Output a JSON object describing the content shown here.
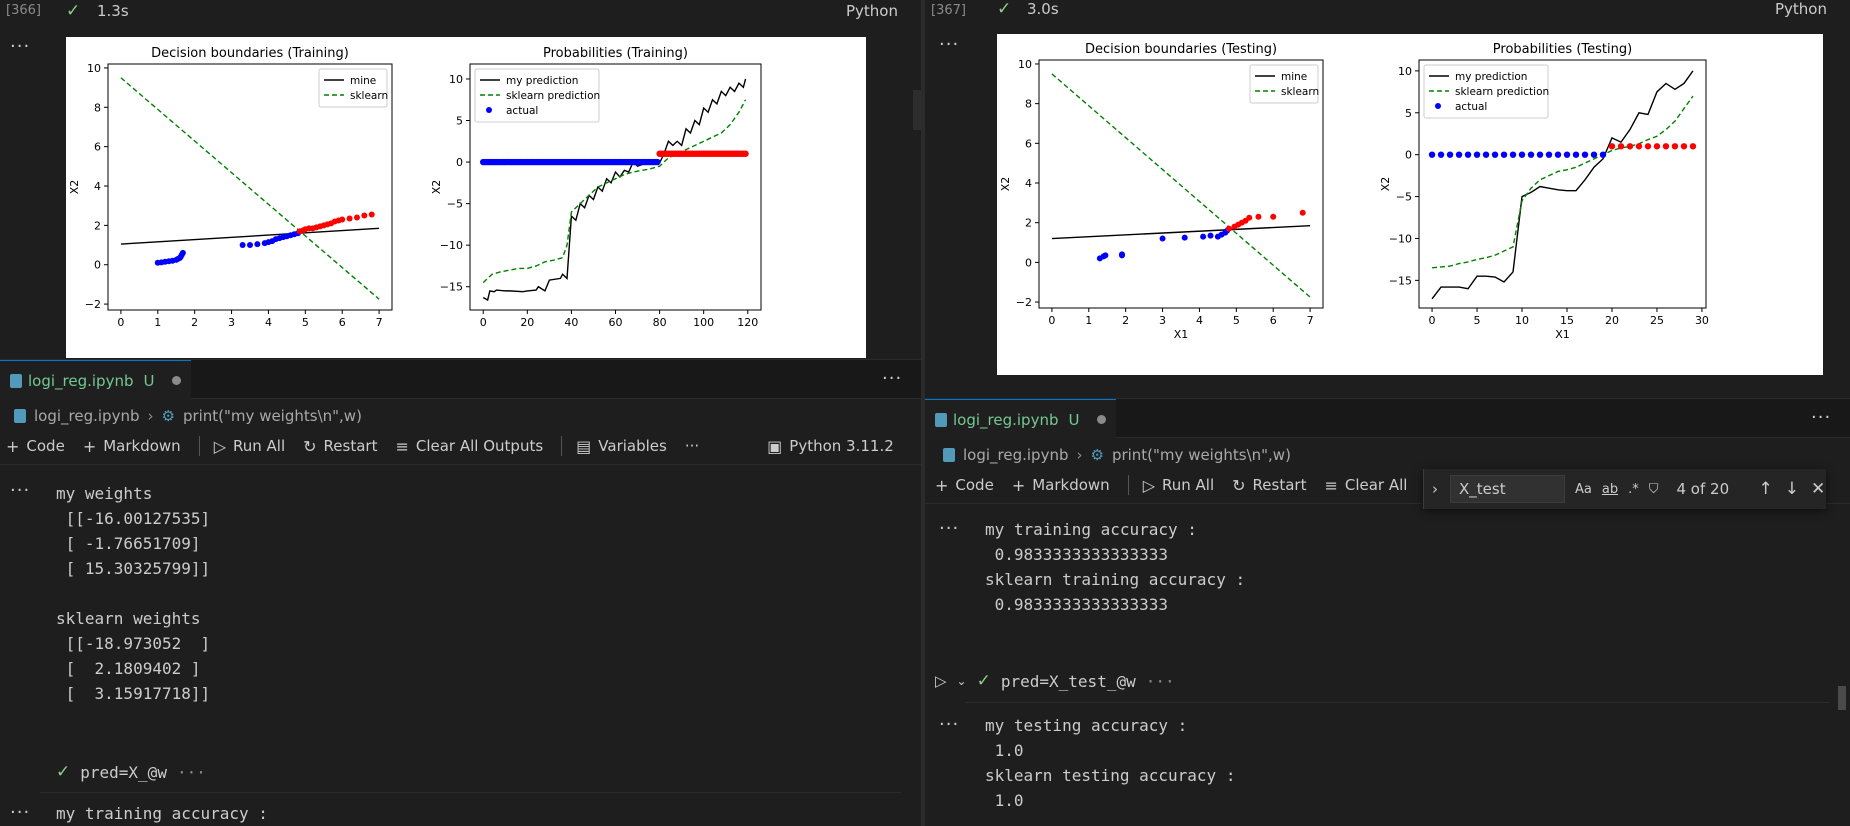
{
  "left": {
    "cell366": {
      "exec_count": "[366]",
      "duration": "1.3s",
      "language": "Python"
    },
    "tab": {
      "filename": "logi_reg.ipynb",
      "status": "U"
    },
    "breadcrumb": {
      "file": "logi_reg.ipynb",
      "symbol": "print(\"my weights\\n\",w)"
    },
    "toolbar": {
      "code": "Code",
      "markdown": "Markdown",
      "run_all": "Run All",
      "restart": "Restart",
      "clear_outputs": "Clear All Outputs",
      "variables": "Variables",
      "kernel": "Python 3.11.2"
    },
    "output_weights": "my weights\n [[-16.00127535]\n [ -1.76651709]\n [ 15.30325799]]\n\nsklearn weights\n [[-18.973052  ]\n [  2.1809402 ]\n [  3.15917718]]",
    "collapsed_cell": {
      "code": "pred=X_@w",
      "more": "···"
    },
    "output_train_partial": "my training accuracy :"
  },
  "right": {
    "cell367": {
      "exec_count": "[367]",
      "duration": "3.0s",
      "language": "Python"
    },
    "tab": {
      "filename": "logi_reg.ipynb",
      "status": "U"
    },
    "breadcrumb": {
      "file": "logi_reg.ipynb",
      "symbol": "print(\"my weights\\n\",w)"
    },
    "toolbar": {
      "code": "Code",
      "markdown": "Markdown",
      "run_all": "Run All",
      "restart": "Restart",
      "clear_outputs": "Clear All"
    },
    "find": {
      "query": "X_test",
      "count": "4 of 20",
      "opt_case": "Aa",
      "opt_word": "ab",
      "opt_regex": ".*"
    },
    "output_train": "my training accuracy :\n 0.9833333333333333\nsklearn training accuracy :\n 0.9833333333333333",
    "collapsed_cell": {
      "code": "pred=X_test_@w",
      "more": "···"
    },
    "output_test": "my testing accuracy :\n 1.0\nsklearn testing accuracy :\n 1.0"
  },
  "icons": {
    "check": "check-icon",
    "more": "more-icon",
    "plus": "plus-icon",
    "play": "play-icon",
    "restart": "restart-icon",
    "clear": "clear-icon",
    "variables": "variables-icon",
    "kernel": "kernel-icon",
    "notebook": "notebook-icon",
    "symbol": "symbol-icon"
  },
  "chart_data": [
    {
      "type": "scatter",
      "title": "Decision boundaries (Training)",
      "xlabel": "",
      "ylabel": "X2",
      "xlim": [
        -0.35,
        7.35
      ],
      "ylim": [
        -2.3,
        10.2
      ],
      "xticks": [
        0,
        1,
        2,
        3,
        4,
        5,
        6,
        7
      ],
      "yticks": [
        -2,
        0,
        2,
        4,
        6,
        8,
        10
      ],
      "legend": {
        "position": "top-right",
        "entries": [
          "mine",
          "sklearn"
        ]
      },
      "lines": [
        {
          "name": "mine",
          "style": "solid",
          "color": "#000000",
          "x": [
            0,
            7
          ],
          "y": [
            1.05,
            1.85
          ]
        },
        {
          "name": "sklearn",
          "style": "dashed",
          "color": "#008000",
          "x": [
            0,
            7
          ],
          "y": [
            9.5,
            -1.75
          ]
        }
      ],
      "scatter": [
        {
          "color": "#0000ff",
          "x": [
            1.0,
            1.1,
            1.2,
            1.3,
            1.4,
            1.5,
            1.55,
            1.6,
            1.62,
            1.65,
            1.68,
            3.3,
            3.5,
            3.7,
            3.9,
            4.0,
            4.1,
            4.2,
            4.3,
            4.4,
            4.5,
            4.6,
            4.7,
            4.8
          ],
          "y": [
            0.1,
            0.12,
            0.15,
            0.18,
            0.2,
            0.25,
            0.3,
            0.35,
            0.4,
            0.5,
            0.6,
            1.0,
            1.0,
            1.05,
            1.1,
            1.15,
            1.2,
            1.3,
            1.35,
            1.4,
            1.45,
            1.5,
            1.55,
            1.6
          ]
        },
        {
          "color": "#ff0000",
          "x": [
            4.85,
            4.95,
            5.0,
            5.1,
            5.2,
            5.3,
            5.4,
            5.5,
            5.6,
            5.7,
            5.8,
            5.9,
            6.0,
            6.2,
            6.4,
            6.6,
            6.8
          ],
          "y": [
            1.7,
            1.75,
            1.8,
            1.85,
            1.85,
            1.9,
            1.95,
            2.0,
            2.05,
            2.1,
            2.2,
            2.25,
            2.3,
            2.35,
            2.4,
            2.5,
            2.55
          ]
        }
      ]
    },
    {
      "type": "line",
      "title": "Probabilities (Training)",
      "xlabel": "",
      "ylabel": "X2",
      "xlim": [
        -6,
        126
      ],
      "ylim": [
        -17.8,
        11.8
      ],
      "xticks": [
        0,
        20,
        40,
        60,
        80,
        100,
        120
      ],
      "yticks": [
        -15,
        -10,
        -5,
        0,
        5,
        10
      ],
      "legend": {
        "position": "top-left",
        "entries": [
          "my prediction",
          "sklearn prediction",
          "actual"
        ]
      },
      "series": [
        {
          "name": "my prediction",
          "style": "solid",
          "color": "#000000",
          "x": [
            0,
            2,
            3,
            5,
            6,
            10,
            12,
            18,
            20,
            24,
            25,
            28,
            30,
            35,
            36,
            38,
            40,
            42,
            44,
            46,
            48,
            50,
            52,
            54,
            56,
            58,
            60,
            62,
            64,
            66,
            68,
            70,
            72,
            74,
            76,
            78,
            80,
            82,
            84,
            86,
            88,
            90,
            92,
            94,
            96,
            98,
            100,
            102,
            104,
            106,
            108,
            110,
            112,
            114,
            116,
            118,
            119
          ],
          "y": [
            -16.3,
            -16.6,
            -15.5,
            -15.6,
            -15.4,
            -15.5,
            -15.5,
            -15.6,
            -15.5,
            -15.4,
            -15.0,
            -15.5,
            -14.2,
            -14.0,
            -13.5,
            -14.0,
            -6.5,
            -7.0,
            -5.0,
            -5.5,
            -4.0,
            -4.5,
            -3.0,
            -3.5,
            -2.0,
            -2.5,
            -1.2,
            -1.8,
            -1.0,
            -1.2,
            0.0,
            -0.5,
            -0.3,
            -0.2,
            0.0,
            -0.2,
            -0.1,
            1.0,
            2.5,
            2.0,
            2.5,
            2.0,
            4.0,
            3.5,
            5.0,
            4.5,
            6.5,
            6.0,
            7.5,
            7.0,
            8.5,
            8.0,
            9.0,
            8.5,
            9.5,
            9.0,
            10.0
          ]
        },
        {
          "name": "sklearn prediction",
          "style": "dashed",
          "color": "#008000",
          "x": [
            0,
            4,
            8,
            12,
            16,
            20,
            24,
            28,
            32,
            36,
            38,
            40,
            44,
            48,
            52,
            56,
            60,
            64,
            68,
            72,
            76,
            80,
            84,
            88,
            92,
            96,
            100,
            104,
            108,
            112,
            116,
            119
          ],
          "y": [
            -14.5,
            -13.5,
            -13.2,
            -13.0,
            -12.8,
            -12.8,
            -12.5,
            -12.0,
            -11.8,
            -11.5,
            -10.0,
            -6.0,
            -5.0,
            -4.0,
            -3.0,
            -2.5,
            -2.0,
            -1.5,
            -1.2,
            -1.0,
            -0.8,
            -0.5,
            0.5,
            1.0,
            1.5,
            2.0,
            2.5,
            3.0,
            3.5,
            4.5,
            6.0,
            7.5
          ]
        },
        {
          "name": "actual",
          "style": "dots",
          "color_neg": "#0000ff",
          "color_pos": "#ff0000",
          "x_neg_range": [
            0,
            79
          ],
          "x_pos_range": [
            80,
            119
          ],
          "y_neg": 0,
          "y_pos": 1
        }
      ]
    },
    {
      "type": "scatter",
      "title": "Decision boundaries (Testing)",
      "xlabel": "X1",
      "ylabel": "X2",
      "xlim": [
        -0.35,
        7.35
      ],
      "ylim": [
        -2.3,
        10.2
      ],
      "xticks": [
        0,
        1,
        2,
        3,
        4,
        5,
        6,
        7
      ],
      "yticks": [
        -2,
        0,
        2,
        4,
        6,
        8,
        10
      ],
      "legend": {
        "position": "top-right",
        "entries": [
          "mine",
          "sklearn"
        ]
      },
      "lines": [
        {
          "name": "mine",
          "style": "solid",
          "color": "#000000",
          "x": [
            0,
            7
          ],
          "y": [
            1.2,
            1.85
          ]
        },
        {
          "name": "sklearn",
          "style": "dashed",
          "color": "#008000",
          "x": [
            0,
            7
          ],
          "y": [
            9.5,
            -1.75
          ]
        }
      ],
      "scatter": [
        {
          "color": "#0000ff",
          "x": [
            1.3,
            1.4,
            1.45,
            1.9,
            1.9,
            3.0,
            3.6,
            4.1,
            4.3,
            4.5,
            4.6,
            4.7,
            4.75
          ],
          "y": [
            0.2,
            0.3,
            0.35,
            0.35,
            0.4,
            1.2,
            1.25,
            1.3,
            1.35,
            1.3,
            1.4,
            1.5,
            1.6
          ]
        },
        {
          "color": "#ff0000",
          "x": [
            4.8,
            4.95,
            5.05,
            5.15,
            5.25,
            5.35,
            5.6,
            6.0,
            6.8
          ],
          "y": [
            1.7,
            1.8,
            1.9,
            2.0,
            2.1,
            2.25,
            2.3,
            2.3,
            2.5
          ]
        }
      ]
    },
    {
      "type": "line",
      "title": "Probabilities (Testing)",
      "xlabel": "X1",
      "ylabel": "X2",
      "xlim": [
        -1.45,
        30.45
      ],
      "ylim": [
        -18.3,
        11.3
      ],
      "xticks": [
        0,
        5,
        10,
        15,
        20,
        25,
        30
      ],
      "yticks": [
        -15,
        -10,
        -5,
        0,
        5,
        10
      ],
      "legend": {
        "position": "top-left",
        "entries": [
          "my prediction",
          "sklearn prediction",
          "actual"
        ]
      },
      "series": [
        {
          "name": "my prediction",
          "style": "solid",
          "color": "#000000",
          "x": [
            0,
            1,
            2,
            3,
            4,
            5,
            6,
            7,
            8,
            9,
            10,
            11,
            12,
            13,
            14,
            15,
            16,
            17,
            18,
            19,
            20,
            21,
            22,
            23,
            24,
            25,
            26,
            27,
            28,
            29
          ],
          "y": [
            -17.2,
            -15.8,
            -15.8,
            -15.8,
            -16.0,
            -14.5,
            -14.5,
            -14.6,
            -15.2,
            -14.0,
            -5.0,
            -4.5,
            -3.8,
            -4.0,
            -4.2,
            -4.3,
            -4.3,
            -3.0,
            -1.5,
            -0.5,
            2.0,
            1.5,
            3.0,
            5.0,
            4.8,
            7.5,
            8.5,
            7.8,
            8.5,
            10.0
          ]
        },
        {
          "name": "sklearn prediction",
          "style": "dashed",
          "color": "#008000",
          "x": [
            0,
            1,
            2,
            3,
            4,
            5,
            6,
            7,
            8,
            9,
            10,
            11,
            12,
            13,
            14,
            15,
            16,
            17,
            18,
            19,
            20,
            21,
            22,
            23,
            24,
            25,
            26,
            27,
            28,
            29
          ],
          "y": [
            -13.5,
            -13.4,
            -13.3,
            -13.0,
            -12.8,
            -12.5,
            -12.3,
            -12.0,
            -11.5,
            -11.0,
            -5.5,
            -4.0,
            -3.0,
            -2.5,
            -2.0,
            -1.8,
            -1.5,
            -1.0,
            -0.5,
            0.0,
            0.5,
            0.8,
            1.0,
            1.3,
            1.8,
            2.2,
            3.0,
            4.0,
            5.5,
            7.0
          ]
        },
        {
          "name": "actual",
          "style": "dots",
          "color_neg": "#0000ff",
          "color_pos": "#ff0000",
          "x_neg_range": [
            0,
            19
          ],
          "x_pos_range": [
            20,
            29
          ],
          "y_neg": 0,
          "y_pos": 1
        }
      ]
    }
  ]
}
